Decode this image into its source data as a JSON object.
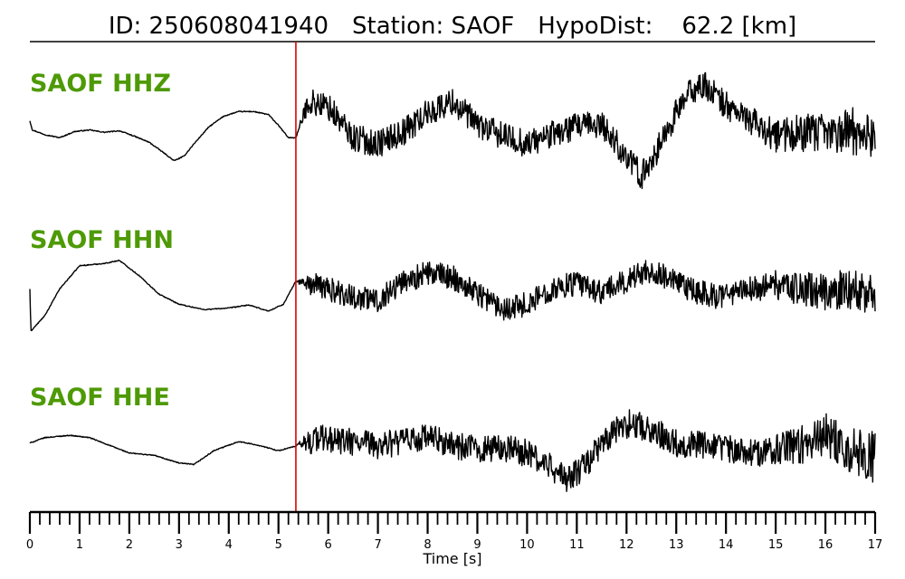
{
  "title": {
    "id_label": "ID: 250608041940",
    "station_label": "Station: SAOF",
    "hypodist_label": "HypoDist:",
    "hypodist_value": "62.2 [km]"
  },
  "colors": {
    "channel_label": "#4e9a06",
    "pick_line": "#e00000",
    "trace": "#000000"
  },
  "chart_data": {
    "type": "line",
    "xlabel": "Time [s]",
    "ylabel": "",
    "xlim": [
      0,
      17
    ],
    "x_ticks": [
      "0",
      "1",
      "2",
      "3",
      "4",
      "5",
      "6",
      "7",
      "8",
      "9",
      "10",
      "11",
      "12",
      "13",
      "14",
      "15",
      "16",
      "17"
    ],
    "minor_tick_step": 0.2,
    "grid": false,
    "p_pick_time": 5.35,
    "series": [
      {
        "name": "SAOF HHZ",
        "points": [
          [
            0,
            0.1
          ],
          [
            0.05,
            -0.02
          ],
          [
            0.3,
            -0.08
          ],
          [
            0.6,
            -0.12
          ],
          [
            0.9,
            -0.04
          ],
          [
            1.2,
            -0.02
          ],
          [
            1.5,
            -0.05
          ],
          [
            1.8,
            -0.03
          ],
          [
            2.1,
            -0.1
          ],
          [
            2.4,
            -0.18
          ],
          [
            2.7,
            -0.32
          ],
          [
            2.9,
            -0.42
          ],
          [
            3.1,
            -0.36
          ],
          [
            3.3,
            -0.2
          ],
          [
            3.6,
            0.02
          ],
          [
            3.9,
            0.16
          ],
          [
            4.2,
            0.22
          ],
          [
            4.5,
            0.22
          ],
          [
            4.8,
            0.18
          ],
          [
            5.0,
            0.04
          ],
          [
            5.2,
            -0.12
          ],
          [
            5.35,
            -0.12
          ],
          [
            5.6,
            0.35
          ],
          [
            6.0,
            0.28
          ],
          [
            6.5,
            -0.12
          ],
          [
            7.0,
            -0.2
          ],
          [
            7.5,
            -0.05
          ],
          [
            8.0,
            0.2
          ],
          [
            8.5,
            0.35
          ],
          [
            9.0,
            0.05
          ],
          [
            9.5,
            -0.1
          ],
          [
            10.0,
            -0.2
          ],
          [
            10.5,
            -0.08
          ],
          [
            11.0,
            0.02
          ],
          [
            11.5,
            0.05
          ],
          [
            11.8,
            -0.2
          ],
          [
            12.1,
            -0.45
          ],
          [
            12.3,
            -0.62
          ],
          [
            12.6,
            -0.3
          ],
          [
            13.0,
            0.2
          ],
          [
            13.3,
            0.5
          ],
          [
            13.6,
            0.55
          ],
          [
            14.0,
            0.3
          ],
          [
            14.5,
            0.1
          ],
          [
            15.0,
            -0.1
          ],
          [
            15.5,
            -0.05
          ],
          [
            16.0,
            -0.08
          ],
          [
            16.5,
            -0.02
          ],
          [
            17.0,
            -0.1
          ]
        ],
        "noise_amplitude": 0.18
      },
      {
        "name": "SAOF HHN",
        "points": [
          [
            0,
            -0.05
          ],
          [
            0.02,
            -0.6
          ],
          [
            0.3,
            -0.4
          ],
          [
            0.6,
            -0.05
          ],
          [
            1.0,
            0.25
          ],
          [
            1.5,
            0.28
          ],
          [
            1.8,
            0.32
          ],
          [
            2.2,
            0.12
          ],
          [
            2.6,
            -0.12
          ],
          [
            3.0,
            -0.25
          ],
          [
            3.5,
            -0.32
          ],
          [
            4.0,
            -0.3
          ],
          [
            4.4,
            -0.26
          ],
          [
            4.8,
            -0.34
          ],
          [
            5.1,
            -0.25
          ],
          [
            5.35,
            0.05
          ],
          [
            5.6,
            0.02
          ],
          [
            6.0,
            -0.05
          ],
          [
            6.5,
            -0.15
          ],
          [
            7.0,
            -0.2
          ],
          [
            7.5,
            0.05
          ],
          [
            8.0,
            0.15
          ],
          [
            8.5,
            0.1
          ],
          [
            9.0,
            -0.1
          ],
          [
            9.5,
            -0.3
          ],
          [
            10.0,
            -0.25
          ],
          [
            10.5,
            -0.05
          ],
          [
            11.0,
            0.02
          ],
          [
            11.5,
            -0.1
          ],
          [
            12.0,
            0.05
          ],
          [
            12.4,
            0.2
          ],
          [
            12.8,
            0.1
          ],
          [
            13.2,
            -0.05
          ],
          [
            13.8,
            -0.15
          ],
          [
            14.5,
            -0.05
          ],
          [
            15.0,
            0.0
          ],
          [
            15.5,
            -0.05
          ],
          [
            16.0,
            -0.1
          ],
          [
            16.5,
            -0.05
          ],
          [
            17.0,
            -0.1
          ]
        ],
        "noise_amplitude": 0.16
      },
      {
        "name": "SAOF HHE",
        "points": [
          [
            0,
            -0.02
          ],
          [
            0.3,
            0.05
          ],
          [
            0.8,
            0.08
          ],
          [
            1.2,
            0.05
          ],
          [
            1.6,
            -0.05
          ],
          [
            2.0,
            -0.15
          ],
          [
            2.5,
            -0.18
          ],
          [
            3.0,
            -0.28
          ],
          [
            3.3,
            -0.3
          ],
          [
            3.7,
            -0.12
          ],
          [
            4.2,
            0.0
          ],
          [
            4.6,
            -0.05
          ],
          [
            5.0,
            -0.12
          ],
          [
            5.35,
            -0.06
          ],
          [
            5.8,
            0.05
          ],
          [
            6.3,
            0.0
          ],
          [
            7.0,
            -0.05
          ],
          [
            7.5,
            0.0
          ],
          [
            8.0,
            0.05
          ],
          [
            8.5,
            -0.05
          ],
          [
            9.0,
            -0.1
          ],
          [
            9.5,
            -0.08
          ],
          [
            10.0,
            -0.15
          ],
          [
            10.5,
            -0.35
          ],
          [
            10.8,
            -0.5
          ],
          [
            11.1,
            -0.35
          ],
          [
            11.5,
            -0.05
          ],
          [
            11.8,
            0.15
          ],
          [
            12.1,
            0.25
          ],
          [
            12.5,
            0.15
          ],
          [
            13.0,
            -0.02
          ],
          [
            13.5,
            -0.05
          ],
          [
            14.0,
            -0.08
          ],
          [
            14.5,
            -0.15
          ],
          [
            15.0,
            -0.1
          ],
          [
            15.5,
            -0.05
          ],
          [
            16.0,
            0.1
          ],
          [
            16.5,
            -0.1
          ],
          [
            17.0,
            -0.2
          ]
        ],
        "noise_amplitude": 0.18
      }
    ]
  }
}
